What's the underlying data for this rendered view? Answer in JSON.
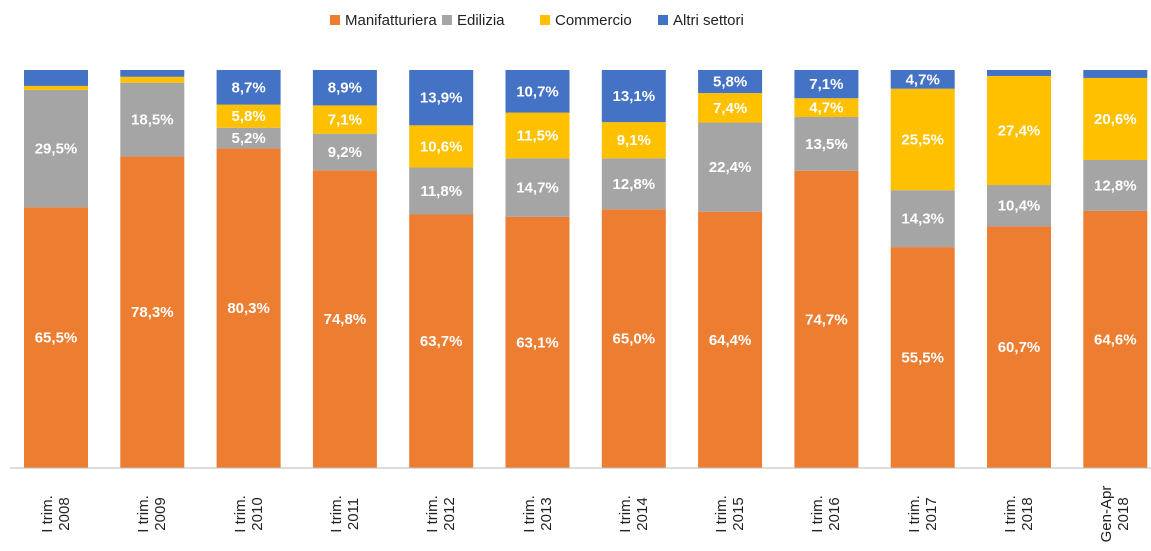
{
  "chart_data": {
    "type": "stacked_bar",
    "categories": [
      "I trim. 2008",
      "I trim. 2009",
      "I trim. 2010",
      "I trim. 2011",
      "I trim. 2012",
      "I trim. 2013",
      "I trim. 2014",
      "I trim. 2015",
      "I trim. 2016",
      "I trim. 2017",
      "I trim. 2018",
      "Gen-Apr 2018"
    ],
    "ylim": [
      0,
      100
    ],
    "legend": "top",
    "series": [
      {
        "name": "Manifatturiera",
        "color": "#ed7d31",
        "values": [
          65.5,
          78.3,
          80.3,
          74.8,
          63.7,
          63.1,
          65.0,
          64.4,
          74.7,
          55.5,
          60.7,
          64.6
        ],
        "value_labels": [
          "65,5%",
          "78,3%",
          "80,3%",
          "74,8%",
          "63,7%",
          "63,1%",
          "65,0%",
          "64,4%",
          "74,7%",
          "55,5%",
          "60,7%",
          "64,6%"
        ]
      },
      {
        "name": "Edilizia",
        "color": "#a5a5a5",
        "values": [
          29.5,
          18.5,
          5.2,
          9.2,
          11.8,
          14.7,
          12.8,
          22.4,
          13.5,
          14.3,
          10.4,
          12.8
        ],
        "value_labels": [
          "29,5%",
          "18,5%",
          "5,2%",
          "9,2%",
          "11,8%",
          "14,7%",
          "12,8%",
          "22,4%",
          "13,5%",
          "14,3%",
          "10,4%",
          "12,8%"
        ]
      },
      {
        "name": "Commercio",
        "color": "#ffc000",
        "values": [
          1.0,
          1.5,
          5.8,
          7.1,
          10.6,
          11.5,
          9.1,
          7.4,
          4.7,
          25.5,
          27.4,
          20.6
        ],
        "value_labels": [
          null,
          null,
          "5,8%",
          "7,1%",
          "10,6%",
          "11,5%",
          "9,1%",
          "7,4%",
          "4,7%",
          "25,5%",
          "27,4%",
          "20,6%"
        ]
      },
      {
        "name": "Altri settori",
        "color": "#4472c4",
        "values": [
          4.0,
          1.7,
          8.7,
          8.9,
          13.9,
          10.7,
          13.1,
          5.8,
          7.1,
          4.7,
          1.5,
          2.0
        ],
        "value_labels": [
          null,
          null,
          "8,7%",
          "8,9%",
          "13,9%",
          "10,7%",
          "13,1%",
          "5,8%",
          "7,1%",
          "4,7%",
          null,
          null
        ]
      }
    ]
  }
}
